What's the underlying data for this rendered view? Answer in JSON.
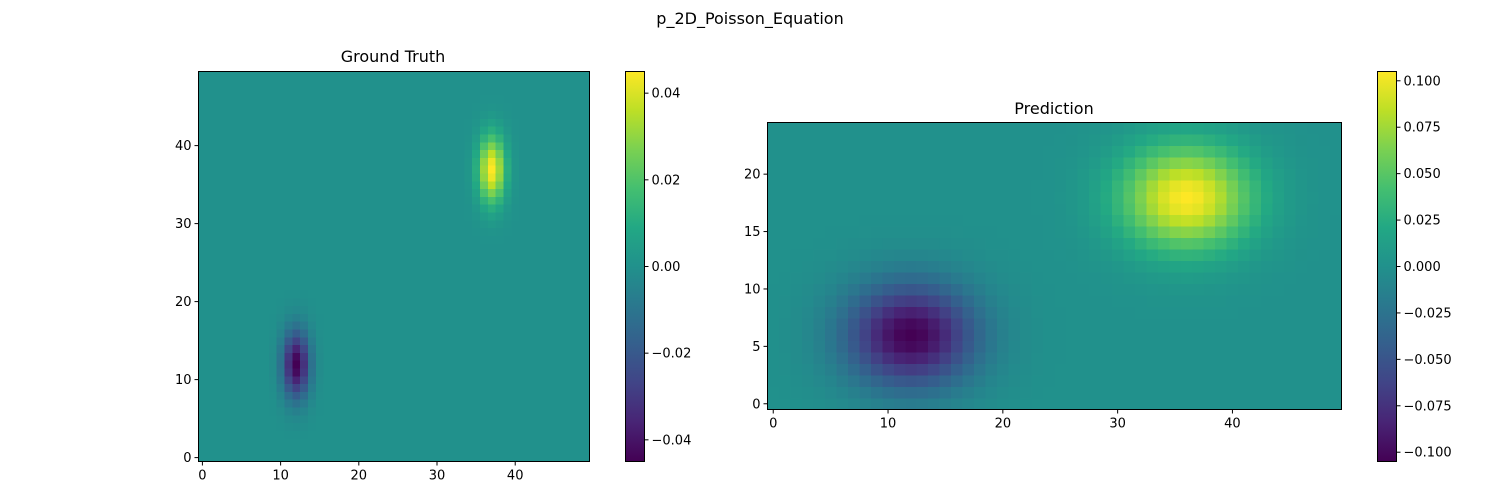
{
  "figure": {
    "title": "p_2D_Poisson_Equation"
  },
  "colormap": "viridis",
  "chart_data": [
    {
      "type": "heatmap",
      "title": "Ground Truth",
      "grid": {
        "nx": 50,
        "ny": 50
      },
      "xlim": [
        -0.5,
        49.5
      ],
      "ylim": [
        -0.5,
        49.5
      ],
      "xticks": [
        0,
        10,
        20,
        30,
        40
      ],
      "yticks": [
        0,
        10,
        20,
        30,
        40
      ],
      "value_range": [
        -0.045,
        0.045
      ],
      "colorbar": {
        "range": [
          -0.045,
          0.045
        ],
        "ticks": [
          "0.04",
          "0.02",
          "0.00",
          "−0.02",
          "−0.04"
        ],
        "tick_values": [
          0.04,
          0.02,
          0.0,
          -0.02,
          -0.04
        ]
      },
      "features": [
        {
          "kind": "peak",
          "x": 37,
          "y": 37,
          "amplitude": 0.045,
          "spread_x": 1.2,
          "spread_y": 3.0
        },
        {
          "kind": "trough",
          "x": 12,
          "y": 12,
          "amplitude": -0.045,
          "spread_x": 1.2,
          "spread_y": 3.0
        }
      ]
    },
    {
      "type": "heatmap",
      "title": "Prediction",
      "grid": {
        "nx": 50,
        "ny": 25
      },
      "xlim": [
        -0.5,
        49.5
      ],
      "ylim": [
        -0.5,
        24.5
      ],
      "xticks": [
        0,
        10,
        20,
        30,
        40
      ],
      "yticks": [
        0,
        5,
        10,
        15,
        20
      ],
      "value_range": [
        -0.105,
        0.105
      ],
      "colorbar": {
        "range": [
          -0.105,
          0.105
        ],
        "ticks": [
          "0.100",
          "0.075",
          "0.050",
          "0.025",
          "0.000",
          "−0.025",
          "−0.050",
          "−0.075",
          "−0.100"
        ],
        "tick_values": [
          0.1,
          0.075,
          0.05,
          0.025,
          0.0,
          -0.025,
          -0.05,
          -0.075,
          -0.1
        ]
      },
      "features": [
        {
          "kind": "peak",
          "x": 36,
          "y": 18,
          "amplitude": 0.105,
          "spread_x": 4.0,
          "spread_y": 3.2
        },
        {
          "kind": "trough",
          "x": 12,
          "y": 6,
          "amplitude": -0.105,
          "spread_x": 4.0,
          "spread_y": 3.2
        }
      ]
    }
  ]
}
